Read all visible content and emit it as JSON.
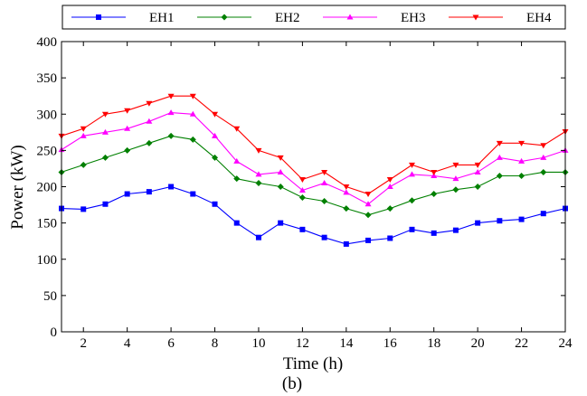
{
  "chart_data": {
    "type": "line",
    "xlabel": "Time (h)",
    "ylabel": "Power (kW)",
    "caption": "(b)",
    "x": [
      1,
      2,
      3,
      4,
      5,
      6,
      7,
      8,
      9,
      10,
      11,
      12,
      13,
      14,
      15,
      16,
      17,
      18,
      19,
      20,
      21,
      22,
      23,
      24
    ],
    "xlim": [
      1,
      24
    ],
    "ylim": [
      0,
      400
    ],
    "xticks": [
      2,
      4,
      6,
      8,
      10,
      12,
      14,
      16,
      18,
      20,
      22,
      24
    ],
    "yticks": [
      0,
      50,
      100,
      150,
      200,
      250,
      300,
      350,
      400
    ],
    "legend_position": "top",
    "grid": false,
    "series": [
      {
        "name": "EH1",
        "color": "#0000ff",
        "marker": "square",
        "values": [
          170,
          169,
          176,
          190,
          193,
          200,
          190,
          176,
          150,
          130,
          150,
          141,
          130,
          121,
          126,
          129,
          141,
          136,
          140,
          150,
          153,
          155,
          163,
          170
        ]
      },
      {
        "name": "EH2",
        "color": "#008000",
        "marker": "diamond",
        "values": [
          220,
          230,
          240,
          250,
          260,
          270,
          265,
          240,
          211,
          205,
          200,
          185,
          180,
          170,
          161,
          170,
          181,
          190,
          196,
          200,
          215,
          215,
          220,
          220
        ]
      },
      {
        "name": "EH3",
        "color": "#ff00ff",
        "marker": "triangle-up",
        "values": [
          251,
          270,
          275,
          280,
          290,
          302,
          300,
          270,
          235,
          217,
          220,
          195,
          205,
          192,
          176,
          200,
          217,
          215,
          211,
          220,
          240,
          235,
          240,
          250
        ]
      },
      {
        "name": "EH4",
        "color": "#ff0000",
        "marker": "triangle-down",
        "values": [
          270,
          280,
          300,
          305,
          315,
          325,
          325,
          300,
          280,
          250,
          240,
          210,
          220,
          200,
          190,
          210,
          230,
          220,
          230,
          230,
          260,
          260,
          257,
          276
        ]
      }
    ]
  }
}
